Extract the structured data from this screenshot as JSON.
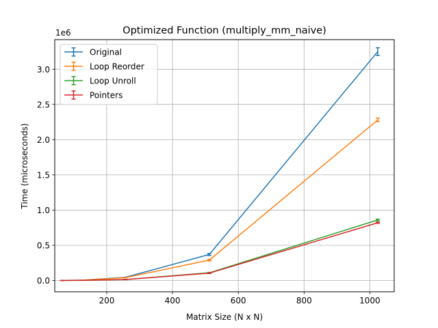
{
  "chart_data": {
    "type": "line",
    "title": "Optimized Function (multiply_mm_naive)",
    "xlabel": "Matrix Size (N x N)",
    "ylabel": "Time (microseconds)",
    "y_offset_label": "1e6",
    "xlim": [
      42,
      1074
    ],
    "ylim": [
      -160000,
      3420000
    ],
    "x_ticks": [
      200,
      400,
      600,
      800,
      1000
    ],
    "x_tick_labels": [
      "200",
      "400",
      "600",
      "800",
      "1000"
    ],
    "y_ticks": [
      0,
      500000,
      1000000,
      1500000,
      2000000,
      2500000,
      3000000
    ],
    "y_tick_labels": [
      "0.0",
      "0.5",
      "1.0",
      "1.5",
      "2.0",
      "2.5",
      "3.0"
    ],
    "grid": true,
    "legend_position": "top-left",
    "x": [
      64,
      128,
      256,
      512,
      1024
    ],
    "series": [
      {
        "name": "Original",
        "color": "#1f77b4",
        "values": [
          1500,
          6000,
          45000,
          370000,
          3250000
        ],
        "errors": [
          0,
          0,
          0,
          15000,
          55000
        ]
      },
      {
        "name": "Loop Reorder",
        "color": "#ff7f0e",
        "values": [
          1200,
          5000,
          40000,
          290000,
          2280000
        ],
        "errors": [
          0,
          0,
          0,
          10000,
          25000
        ]
      },
      {
        "name": "Loop Unroll",
        "color": "#2ca02c",
        "values": [
          800,
          2500,
          14000,
          110000,
          860000
        ],
        "errors": [
          0,
          0,
          0,
          5000,
          12000
        ]
      },
      {
        "name": "Pointers",
        "color": "#d62728",
        "values": [
          700,
          2200,
          13000,
          105000,
          820000
        ],
        "errors": [
          0,
          0,
          0,
          5000,
          8000
        ]
      }
    ]
  }
}
